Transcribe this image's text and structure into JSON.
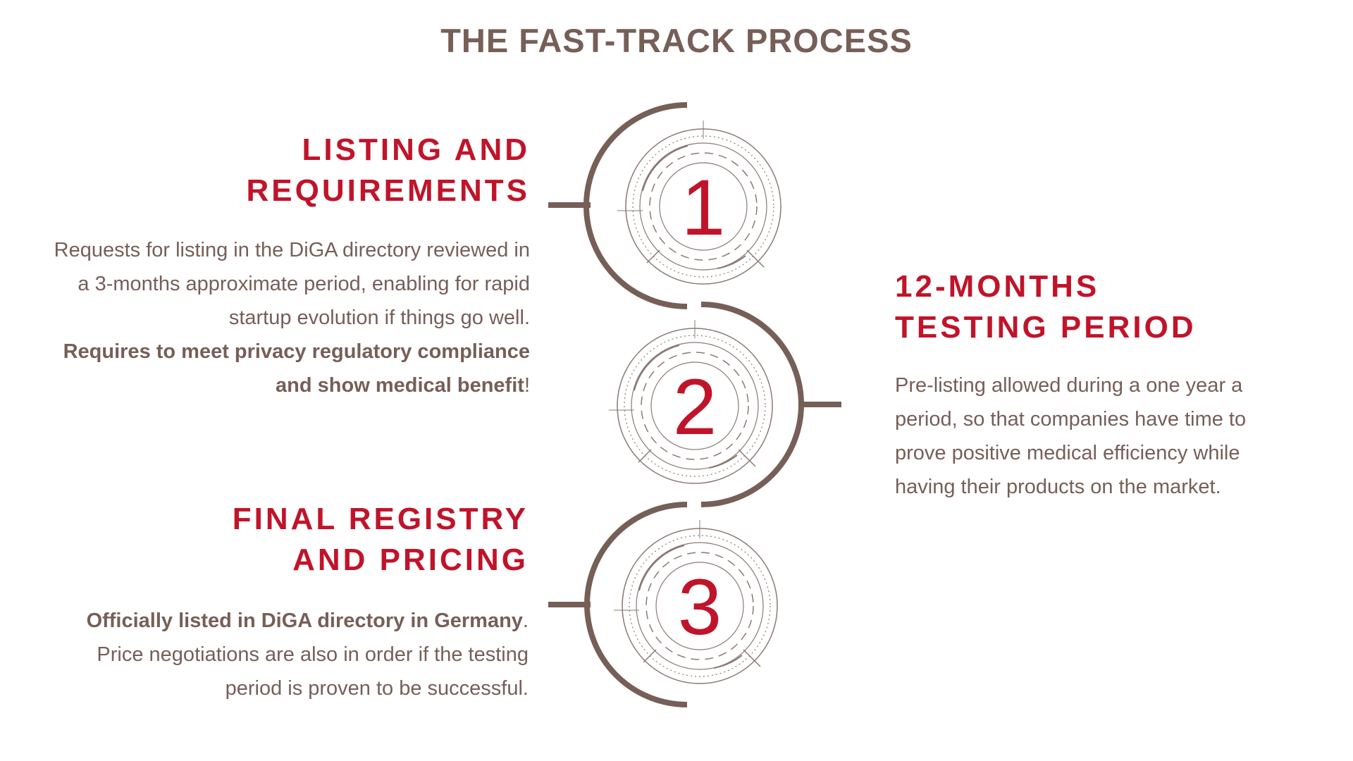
{
  "title": "THE FAST-TRACK PROCESS",
  "colors": {
    "accent": "#c0142a",
    "text": "#765f57",
    "line": "#765f57",
    "badge_line": "#8a7a74"
  },
  "steps": [
    {
      "number": "1",
      "heading_line1": "LISTING AND",
      "heading_line2": "REQUIREMENTS",
      "body_text1": "Requests for listing in the DiGA directory reviewed in a 3-months approximate period, enabling for rapid startup evolution if things go well. ",
      "body_bold": "Requires  to meet privacy regulatory compliance and show medical benefit",
      "body_text2": "!"
    },
    {
      "number": "2",
      "heading_line1": "12-MONTHS",
      "heading_line2": "TESTING PERIOD",
      "body_text1": "Pre-listing allowed during a one year a period, so that companies have time to prove positive medical efficiency while having their products on the market."
    },
    {
      "number": "3",
      "heading_line1": "FINAL REGISTRY",
      "heading_line2": "AND PRICING",
      "body_bold": "Officially listed  in DiGA directory in Germany",
      "body_text1": ".",
      "body_text2": " Price negotiations are also in order if the testing period is proven to be successful."
    }
  ]
}
